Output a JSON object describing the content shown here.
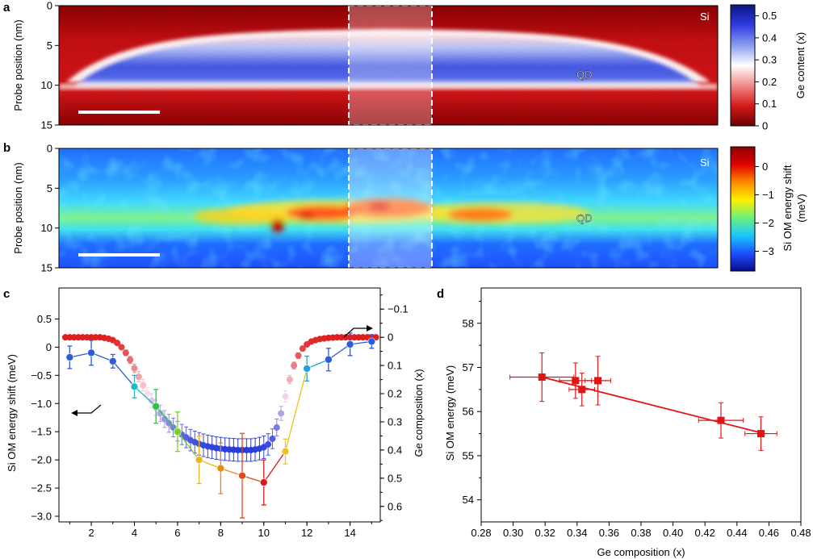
{
  "colors": {
    "red_series": "#e01616",
    "blue_series": "#1f3fd9",
    "frame": "#000000",
    "highlight": "#ffffff"
  },
  "panel_a": {
    "letter": "a",
    "ylabel": "Probe position (nm)",
    "yticks": [
      "0",
      "5",
      "10",
      "15"
    ],
    "labels": {
      "si": "Si",
      "qd": "QD"
    },
    "colorbar": {
      "label": "Ge content (x)",
      "ticks": [
        "0",
        "0.1",
        "0.2",
        "0.3",
        "0.4",
        "0.5"
      ],
      "stops": [
        "#6b0000",
        "#d61a1a",
        "#f08a8a",
        "#ffffff",
        "#8a9cf0",
        "#2d3ce0",
        "#0a1580"
      ]
    }
  },
  "panel_b": {
    "letter": "b",
    "ylabel": "Probe position (nm)",
    "yticks": [
      "0",
      "5",
      "10",
      "15"
    ],
    "labels": {
      "si": "Si",
      "qd": "QD"
    },
    "colorbar": {
      "label_line1": "Si OM energy shift",
      "label_line2": "(meV)",
      "ticks": [
        "0",
        "−1",
        "−2",
        "−3"
      ],
      "stops": [
        "#0a0a8c",
        "#1e50ff",
        "#19c8ff",
        "#6cf07a",
        "#fff000",
        "#ff8a00",
        "#e00000",
        "#8c0000"
      ]
    }
  },
  "chart_data": [
    {
      "panel": "c",
      "type": "line",
      "title": "",
      "xlabel": "",
      "ylabel": "Si OM energy shift (meV)",
      "ylabel_right": "Ge composition (x)",
      "xlim": [
        0.5,
        15.4
      ],
      "ylim": [
        -3.1,
        1.05
      ],
      "ylim_right": [
        0.655,
        -0.175
      ],
      "xticks": [
        "2",
        "4",
        "6",
        "8",
        "10",
        "12",
        "14"
      ],
      "yticks": [
        "0.5",
        "0",
        "−0.5",
        "−1.0",
        "−1.5",
        "−2.0",
        "−2.5",
        "−3.0"
      ],
      "yticks_right": [
        "−0.1",
        "0",
        "0.1",
        "0.2",
        "0.3",
        "0.4",
        "0.5",
        "0.6"
      ],
      "series": [
        {
          "name": "Si OM energy shift",
          "axis": "left",
          "x": [
            1,
            2,
            3,
            4,
            5,
            6,
            7,
            8,
            9,
            10,
            11,
            12,
            13,
            14,
            15
          ],
          "values": [
            -0.18,
            -0.1,
            -0.25,
            -0.7,
            -1.05,
            -1.5,
            -2.0,
            -2.15,
            -2.28,
            -2.4,
            -1.85,
            -0.38,
            -0.22,
            0.05,
            0.1
          ],
          "errors": [
            0.2,
            0.22,
            0.12,
            0.2,
            0.3,
            0.35,
            0.42,
            0.45,
            0.75,
            0.4,
            0.22,
            0.22,
            0.2,
            0.2,
            0.12
          ],
          "point_colors": [
            "#2e5bd8",
            "#2e5bd8",
            "#2e5bd8",
            "#1fb9c8",
            "#2cc24a",
            "#7ad12a",
            "#e8b81c",
            "#e88a1c",
            "#e04a1c",
            "#d81c1c",
            "#f0c020",
            "#1fa0e0",
            "#2e5bd8",
            "#2e5bd8",
            "#2e5bd8"
          ]
        },
        {
          "name": "Ge composition",
          "axis": "right",
          "x": [
            0.8,
            1.0,
            1.2,
            1.4,
            1.6,
            1.8,
            2.0,
            2.2,
            2.4,
            2.6,
            2.8,
            3.0,
            3.2,
            3.4,
            3.6,
            3.8,
            4.0,
            4.2,
            4.4,
            4.6,
            4.8,
            5.0,
            5.2,
            5.4,
            5.6,
            5.8,
            6.0,
            6.2,
            6.4,
            6.6,
            6.8,
            7.0,
            7.2,
            7.4,
            7.6,
            7.8,
            8.0,
            8.2,
            8.4,
            8.6,
            8.8,
            9.0,
            9.2,
            9.4,
            9.6,
            9.8,
            10.0,
            10.2,
            10.4,
            10.6,
            10.8,
            11.0,
            11.2,
            11.4,
            11.6,
            11.8,
            12.0,
            12.2,
            12.4,
            12.6,
            12.8,
            13.0,
            13.2,
            13.4,
            13.6,
            13.8,
            14.0,
            14.2,
            14.4,
            14.6,
            14.8,
            15.0,
            15.2
          ],
          "values": [
            0,
            0,
            0,
            0,
            0,
            0,
            0,
            0,
            0,
            0.002,
            0.005,
            0.01,
            0.02,
            0.035,
            0.055,
            0.08,
            0.11,
            0.14,
            0.17,
            0.2,
            0.225,
            0.25,
            0.27,
            0.29,
            0.305,
            0.32,
            0.333,
            0.345,
            0.355,
            0.365,
            0.372,
            0.378,
            0.383,
            0.387,
            0.39,
            0.393,
            0.395,
            0.397,
            0.398,
            0.399,
            0.4,
            0.4,
            0.4,
            0.4,
            0.398,
            0.395,
            0.39,
            0.38,
            0.36,
            0.32,
            0.27,
            0.21,
            0.15,
            0.1,
            0.065,
            0.04,
            0.025,
            0.015,
            0.01,
            0.006,
            0.004,
            0.002,
            0.001,
            0,
            0,
            0,
            0,
            0,
            0,
            0,
            0,
            0,
            0
          ],
          "errors": [
            0.005,
            0.005,
            0.005,
            0.005,
            0.005,
            0.005,
            0.005,
            0.005,
            0.005,
            0.005,
            0.005,
            0.005,
            0.006,
            0.008,
            0.01,
            0.012,
            0.015,
            0.018,
            0.02,
            0.022,
            0.025,
            0.027,
            0.029,
            0.03,
            0.032,
            0.033,
            0.035,
            0.036,
            0.037,
            0.038,
            0.039,
            0.04,
            0.04,
            0.04,
            0.04,
            0.04,
            0.04,
            0.04,
            0.04,
            0.04,
            0.04,
            0.04,
            0.04,
            0.04,
            0.04,
            0.04,
            0.04,
            0.038,
            0.035,
            0.03,
            0.025,
            0.02,
            0.015,
            0.012,
            0.01,
            0.008,
            0.007,
            0.006,
            0.005,
            0.005,
            0.005,
            0.005,
            0.005,
            0.005,
            0.005,
            0.005,
            0.005,
            0.005,
            0.005,
            0.005,
            0.005,
            0.005,
            0.005
          ]
        }
      ]
    },
    {
      "panel": "d",
      "type": "scatter",
      "title": "",
      "xlabel": "Ge composition (x)",
      "ylabel": "Si OM energy (meV)",
      "xlim": [
        0.28,
        0.48
      ],
      "ylim": [
        53.5,
        58.8
      ],
      "xticks": [
        "0.28",
        "0.30",
        "0.32",
        "0.34",
        "0.36",
        "0.38",
        "0.40",
        "0.42",
        "0.44",
        "0.46",
        "0.48"
      ],
      "yticks": [
        "54",
        "55",
        "56",
        "57",
        "58"
      ],
      "series": [
        {
          "name": "Measured",
          "x": [
            0.318,
            0.339,
            0.343,
            0.353,
            0.43,
            0.455
          ],
          "values": [
            56.78,
            56.7,
            56.5,
            56.7,
            55.8,
            55.5
          ],
          "x_errors": [
            0.02,
            0.01,
            0.008,
            0.008,
            0.014,
            0.01
          ],
          "y_errors": [
            0.55,
            0.4,
            0.37,
            0.55,
            0.4,
            0.38
          ]
        },
        {
          "name": "Linear fit",
          "x": [
            0.318,
            0.455
          ],
          "values": [
            56.78,
            55.52
          ]
        }
      ]
    }
  ]
}
